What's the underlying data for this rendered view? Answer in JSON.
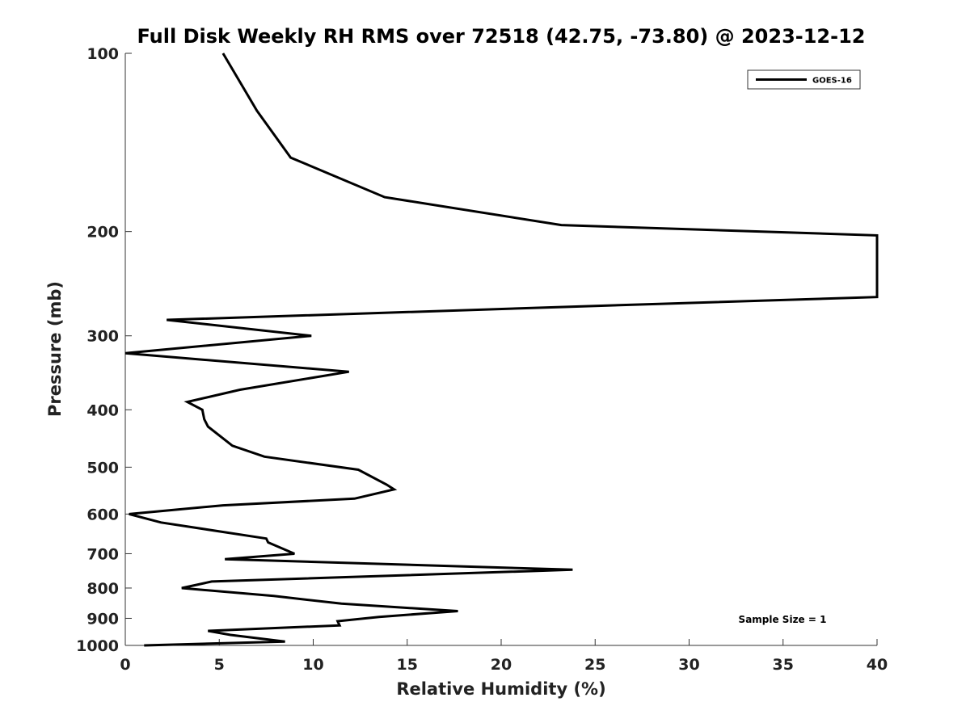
{
  "chart_data": {
    "type": "line",
    "title": "Full Disk Weekly RH RMS over 72518 (42.75, -73.80) @ 2023-12-12",
    "xlabel": "Relative Humidity (%)",
    "ylabel": "Pressure (mb)",
    "xlim": [
      0,
      40
    ],
    "ylim": [
      1000,
      100
    ],
    "yscale": "log",
    "xticks": [
      0,
      5,
      10,
      15,
      20,
      25,
      30,
      35,
      40
    ],
    "yticks": [
      100,
      200,
      300,
      400,
      500,
      600,
      700,
      800,
      900,
      1000
    ],
    "grid": false,
    "legend": {
      "position": "top-right",
      "entries": [
        "GOES-16"
      ]
    },
    "annotation": "Sample Size = 1",
    "series": [
      {
        "name": "GOES-16",
        "color": "#000000",
        "x": [
          5.2,
          7.0,
          8.8,
          13.8,
          23.2,
          40.0,
          40.0,
          28.4,
          2.2,
          9.9,
          0.0,
          11.9,
          6.1,
          3.3,
          4.1,
          4.2,
          4.4,
          5.7,
          7.4,
          12.4,
          13.9,
          14.3,
          12.2,
          5.2,
          0.2,
          1.9,
          7.5,
          7.6,
          9.0,
          5.3,
          23.8,
          4.6,
          3.0,
          7.9,
          11.5,
          17.7,
          13.5,
          11.3,
          11.4,
          4.4,
          5.6,
          8.5,
          1.0
        ],
        "y": [
          100,
          125,
          150,
          175,
          195,
          203,
          258,
          265,
          282,
          300,
          321,
          345,
          370,
          388,
          400,
          415,
          427,
          460,
          480,
          505,
          535,
          545,
          565,
          580,
          600,
          620,
          660,
          670,
          700,
          715,
          745,
          780,
          800,
          825,
          850,
          875,
          895,
          910,
          925,
          945,
          960,
          985,
          1000
        ]
      }
    ]
  }
}
